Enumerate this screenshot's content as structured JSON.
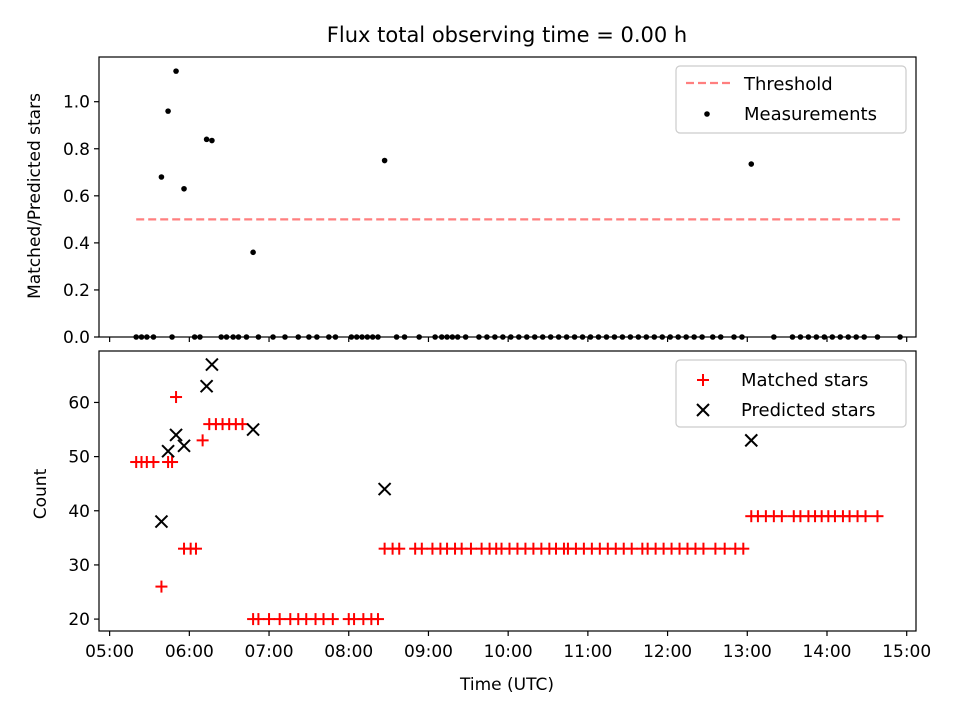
{
  "chart_data": [
    {
      "type": "scatter",
      "title": "Flux total observing time = 0.00 h",
      "xlabel": "",
      "ylabel": "Matched/Predicted stars",
      "xlim": [
        "04:52",
        "15:07"
      ],
      "ylim": [
        0,
        1.19
      ],
      "yticks": [
        0.0,
        0.2,
        0.4,
        0.6,
        0.8,
        1.0
      ],
      "ytick_labels": [
        "0.0",
        "0.2",
        "0.4",
        "0.6",
        "0.8",
        "1.0"
      ],
      "legend_position": "top-right",
      "threshold": {
        "name": "Threshold",
        "value": 0.5,
        "x_range": [
          "05:20",
          "14:55"
        ],
        "color": "#ff7f7f",
        "style": "dashed"
      },
      "series": [
        {
          "name": "Measurements",
          "color": "#000000",
          "marker": "dot",
          "points": [
            [
              "05:39",
              0.68
            ],
            [
              "05:44",
              0.96
            ],
            [
              "05:50",
              1.13
            ],
            [
              "05:56",
              0.63
            ],
            [
              "06:13",
              0.84
            ],
            [
              "06:17",
              0.835
            ],
            [
              "06:48",
              0.36
            ],
            [
              "08:27",
              0.75
            ],
            [
              "13:03",
              0.735
            ],
            [
              "05:20",
              0
            ],
            [
              "05:24",
              0
            ],
            [
              "05:28",
              0
            ],
            [
              "05:33",
              0
            ],
            [
              "05:47",
              0
            ],
            [
              "06:04",
              0
            ],
            [
              "06:08",
              0
            ],
            [
              "06:24",
              0
            ],
            [
              "06:28",
              0
            ],
            [
              "06:33",
              0
            ],
            [
              "06:37",
              0
            ],
            [
              "06:43",
              0
            ],
            [
              "06:52",
              0
            ],
            [
              "07:03",
              0
            ],
            [
              "07:12",
              0
            ],
            [
              "07:22",
              0
            ],
            [
              "07:30",
              0
            ],
            [
              "07:36",
              0
            ],
            [
              "07:45",
              0
            ],
            [
              "07:50",
              0
            ],
            [
              "08:02",
              0
            ],
            [
              "08:06",
              0
            ],
            [
              "08:10",
              0
            ],
            [
              "08:14",
              0
            ],
            [
              "08:18",
              0
            ],
            [
              "08:22",
              0
            ],
            [
              "08:36",
              0
            ],
            [
              "08:42",
              0
            ],
            [
              "08:53",
              0
            ],
            [
              "09:05",
              0
            ],
            [
              "09:10",
              0
            ],
            [
              "09:14",
              0
            ],
            [
              "09:18",
              0
            ],
            [
              "09:22",
              0
            ],
            [
              "09:28",
              0
            ],
            [
              "09:38",
              0
            ],
            [
              "09:44",
              0
            ],
            [
              "09:50",
              0
            ],
            [
              "09:56",
              0
            ],
            [
              "10:02",
              0
            ],
            [
              "10:08",
              0
            ],
            [
              "10:14",
              0
            ],
            [
              "10:20",
              0
            ],
            [
              "10:26",
              0
            ],
            [
              "10:32",
              0
            ],
            [
              "10:38",
              0
            ],
            [
              "10:44",
              0
            ],
            [
              "10:50",
              0
            ],
            [
              "10:56",
              0
            ],
            [
              "11:02",
              0
            ],
            [
              "11:08",
              0
            ],
            [
              "11:14",
              0
            ],
            [
              "11:20",
              0
            ],
            [
              "11:26",
              0
            ],
            [
              "11:32",
              0
            ],
            [
              "11:38",
              0
            ],
            [
              "11:44",
              0
            ],
            [
              "11:50",
              0
            ],
            [
              "11:56",
              0
            ],
            [
              "12:02",
              0
            ],
            [
              "12:08",
              0
            ],
            [
              "12:14",
              0
            ],
            [
              "12:20",
              0
            ],
            [
              "12:26",
              0
            ],
            [
              "12:34",
              0
            ],
            [
              "12:40",
              0
            ],
            [
              "12:50",
              0
            ],
            [
              "12:56",
              0
            ],
            [
              "13:20",
              0
            ],
            [
              "13:34",
              0
            ],
            [
              "13:40",
              0
            ],
            [
              "13:46",
              0
            ],
            [
              "13:52",
              0
            ],
            [
              "13:58",
              0
            ],
            [
              "14:04",
              0
            ],
            [
              "14:10",
              0
            ],
            [
              "14:16",
              0
            ],
            [
              "14:22",
              0
            ],
            [
              "14:28",
              0
            ],
            [
              "14:38",
              0
            ],
            [
              "14:55",
              0
            ]
          ]
        }
      ]
    },
    {
      "type": "scatter",
      "title": "",
      "xlabel": "Time (UTC)",
      "ylabel": "Count",
      "xlim": [
        "04:52",
        "15:07"
      ],
      "ylim": [
        17.8,
        69.5
      ],
      "yticks": [
        20,
        30,
        40,
        50,
        60
      ],
      "ytick_labels": [
        "20",
        "30",
        "40",
        "50",
        "60"
      ],
      "xticks": [
        "05:00",
        "06:00",
        "07:00",
        "08:00",
        "09:00",
        "10:00",
        "11:00",
        "12:00",
        "13:00",
        "14:00",
        "15:00"
      ],
      "xtick_labels": [
        "05:00",
        "06:00",
        "07:00",
        "08:00",
        "09:00",
        "10:00",
        "11:00",
        "12:00",
        "13:00",
        "14:00",
        "15:00"
      ],
      "legend_position": "top-right",
      "series": [
        {
          "name": "Matched stars",
          "color": "#ff0000",
          "marker": "plus",
          "points": [
            [
              "05:20",
              49
            ],
            [
              "05:24",
              49
            ],
            [
              "05:28",
              49
            ],
            [
              "05:33",
              49
            ],
            [
              "05:39",
              26
            ],
            [
              "05:44",
              49
            ],
            [
              "05:47",
              49
            ],
            [
              "05:50",
              61
            ],
            [
              "05:56",
              33
            ],
            [
              "06:01",
              33
            ],
            [
              "06:05",
              33
            ],
            [
              "06:10",
              53
            ],
            [
              "06:15",
              56
            ],
            [
              "06:20",
              56
            ],
            [
              "06:25",
              56
            ],
            [
              "06:30",
              56
            ],
            [
              "06:35",
              56
            ],
            [
              "06:40",
              56
            ],
            [
              "06:48",
              20
            ],
            [
              "06:52",
              20
            ],
            [
              "07:00",
              20
            ],
            [
              "07:08",
              20
            ],
            [
              "07:16",
              20
            ],
            [
              "07:22",
              20
            ],
            [
              "07:28",
              20
            ],
            [
              "07:35",
              20
            ],
            [
              "07:41",
              20
            ],
            [
              "07:48",
              20
            ],
            [
              "08:00",
              20
            ],
            [
              "08:04",
              20
            ],
            [
              "08:11",
              20
            ],
            [
              "08:17",
              20
            ],
            [
              "08:22",
              20
            ],
            [
              "08:27",
              33
            ],
            [
              "08:33",
              33
            ],
            [
              "08:38",
              33
            ],
            [
              "08:50",
              33
            ],
            [
              "08:55",
              33
            ],
            [
              "09:03",
              33
            ],
            [
              "09:09",
              33
            ],
            [
              "09:14",
              33
            ],
            [
              "09:20",
              33
            ],
            [
              "09:25",
              33
            ],
            [
              "09:32",
              33
            ],
            [
              "09:40",
              33
            ],
            [
              "09:46",
              33
            ],
            [
              "09:51",
              33
            ],
            [
              "09:55",
              33
            ],
            [
              "10:01",
              33
            ],
            [
              "10:07",
              33
            ],
            [
              "10:13",
              33
            ],
            [
              "10:19",
              33
            ],
            [
              "10:25",
              33
            ],
            [
              "10:31",
              33
            ],
            [
              "10:36",
              33
            ],
            [
              "10:42",
              33
            ],
            [
              "10:45",
              33
            ],
            [
              "10:51",
              33
            ],
            [
              "10:57",
              33
            ],
            [
              "11:03",
              33
            ],
            [
              "11:09",
              33
            ],
            [
              "11:15",
              33
            ],
            [
              "11:21",
              33
            ],
            [
              "11:27",
              33
            ],
            [
              "11:33",
              33
            ],
            [
              "11:41",
              33
            ],
            [
              "11:45",
              33
            ],
            [
              "11:51",
              33
            ],
            [
              "11:57",
              33
            ],
            [
              "12:03",
              33
            ],
            [
              "12:09",
              33
            ],
            [
              "12:15",
              33
            ],
            [
              "12:21",
              33
            ],
            [
              "12:27",
              33
            ],
            [
              "12:36",
              33
            ],
            [
              "12:43",
              33
            ],
            [
              "12:51",
              33
            ],
            [
              "12:57",
              33
            ],
            [
              "13:03",
              39
            ],
            [
              "13:08",
              39
            ],
            [
              "13:14",
              39
            ],
            [
              "13:20",
              39
            ],
            [
              "13:26",
              39
            ],
            [
              "13:35",
              39
            ],
            [
              "13:40",
              39
            ],
            [
              "13:46",
              39
            ],
            [
              "13:51",
              39
            ],
            [
              "13:56",
              39
            ],
            [
              "14:01",
              39
            ],
            [
              "14:06",
              39
            ],
            [
              "14:12",
              39
            ],
            [
              "14:17",
              39
            ],
            [
              "14:23",
              39
            ],
            [
              "14:29",
              39
            ],
            [
              "14:38",
              39
            ]
          ]
        },
        {
          "name": "Predicted stars",
          "color": "#000000",
          "marker": "x",
          "points": [
            [
              "05:39",
              38
            ],
            [
              "05:44",
              51
            ],
            [
              "05:50",
              54
            ],
            [
              "05:56",
              52
            ],
            [
              "06:13",
              63
            ],
            [
              "06:17",
              67
            ],
            [
              "06:48",
              55
            ],
            [
              "08:27",
              44
            ],
            [
              "13:03",
              53
            ]
          ]
        }
      ]
    }
  ]
}
